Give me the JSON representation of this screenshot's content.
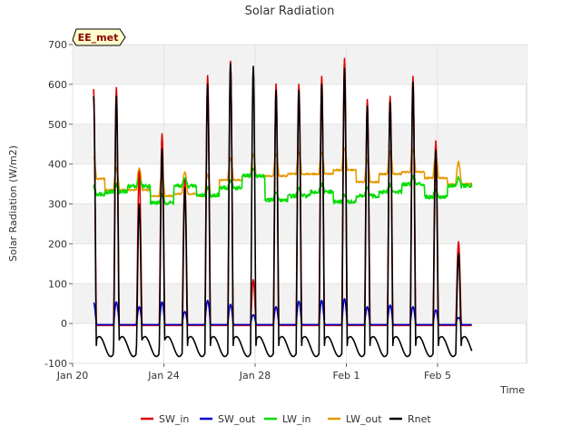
{
  "chart_data": {
    "type": "line",
    "title": "Solar Radiation",
    "xlabel": "Time",
    "ylabel": "Solar Radiation (W/m2)",
    "badge": "EE_met",
    "ylim": [
      -100,
      700
    ],
    "xlim": [
      0,
      19.9
    ],
    "x_unit": "days from Jan 20 (tick labels shown as dates)",
    "yticks": [
      -100,
      0,
      100,
      200,
      300,
      400,
      500,
      600,
      700
    ],
    "xticks": [
      {
        "x": 0,
        "label": "Jan 20"
      },
      {
        "x": 4,
        "label": "Jan 24"
      },
      {
        "x": 8,
        "label": "Jan 28"
      },
      {
        "x": 12,
        "label": "Feb 1"
      },
      {
        "x": 16,
        "label": "Feb 5"
      }
    ],
    "grid": true,
    "legend_position": "bottom",
    "series": [
      {
        "name": "SW_in",
        "color": "#dd0000",
        "day_peaks": [
          588,
          592,
          382,
          476,
          360,
          622,
          658,
          110,
          601,
          600,
          620,
          665,
          562,
          570,
          620,
          458,
          205
        ]
      },
      {
        "name": "SW_out",
        "color": "#0000cc",
        "day_peaks": [
          52,
          54,
          42,
          54,
          30,
          58,
          48,
          22,
          42,
          56,
          58,
          62,
          42,
          46,
          42,
          34,
          15
        ]
      },
      {
        "name": "LW_in",
        "color": "#00dd00",
        "day_values": [
          325,
          330,
          345,
          303,
          345,
          322,
          340,
          370,
          310,
          320,
          330,
          305,
          320,
          330,
          350,
          318,
          345
        ]
      },
      {
        "name": "LW_out",
        "color": "#e69900",
        "day_values": [
          388,
          360,
          360,
          345,
          350,
          345,
          385,
          395,
          395,
          400,
          400,
          410,
          380,
          400,
          405,
          390,
          375
        ]
      },
      {
        "name": "Rnet",
        "color": "#000000",
        "day_peaks": [
          570,
          570,
          300,
          438,
          340,
          600,
          652,
          645,
          585,
          585,
          600,
          640,
          545,
          555,
          605,
          435,
          175
        ]
      }
    ]
  }
}
